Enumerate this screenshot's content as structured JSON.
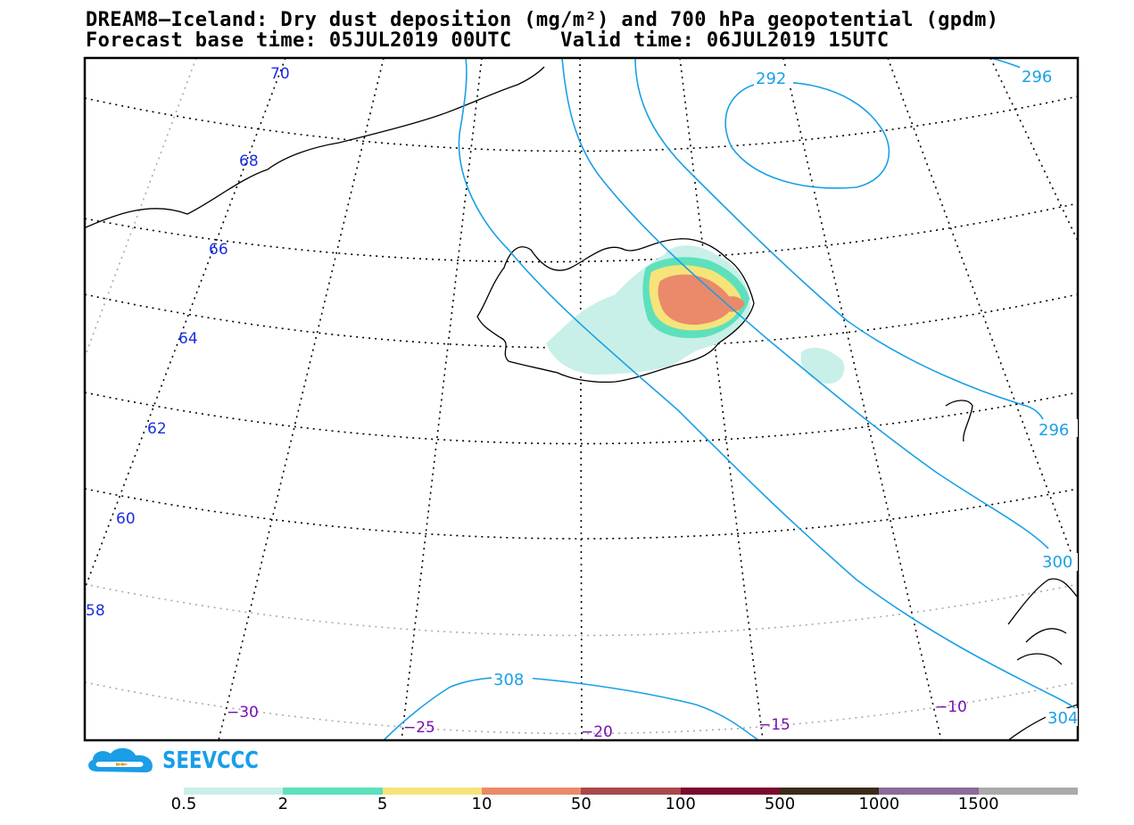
{
  "title_line1": "DREAM8–Iceland: Dry dust deposition (mg/m²) and 700 hPa geopotential (gpdm)",
  "title_line2": "Forecast base time: 05JUL2019 00UTC    Valid time: 06JUL2019 15UTC",
  "logo_text": "SEEVCCC",
  "lat_labels": [
    "70",
    "68",
    "66",
    "64",
    "62",
    "60",
    "58"
  ],
  "lon_labels": [
    "−30",
    "−25",
    "−20",
    "−15",
    "−10"
  ],
  "geopotential_labels": [
    "292",
    "296",
    "296",
    "300",
    "308",
    "304"
  ],
  "legend": {
    "labels": [
      "0.5",
      "2",
      "5",
      "10",
      "50",
      "100",
      "500",
      "1000",
      "1500"
    ],
    "colors": [
      "#c8f0e8",
      "#5ee0bc",
      "#f6e47a",
      "#ea8a6a",
      "#a8484a",
      "#7a0a2e",
      "#3c2a1a",
      "#8c6a9a",
      "#aaaaaa"
    ]
  },
  "colors": {
    "contour": "#1aa0e6",
    "lat_label": "#1a2fe0",
    "lon_label": "#7a10b0"
  }
}
